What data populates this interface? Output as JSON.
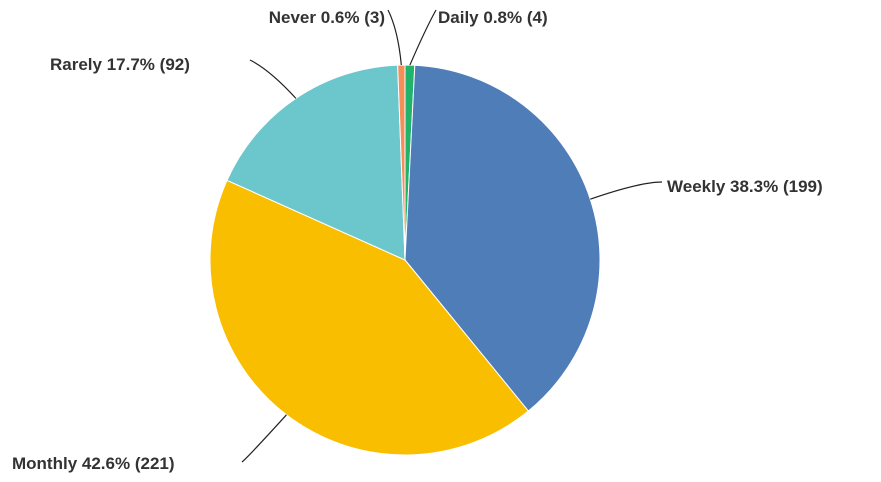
{
  "chart_data": {
    "type": "pie",
    "categories": [
      "Daily",
      "Weekly",
      "Monthly",
      "Rarely",
      "Never"
    ],
    "values": [
      0.8,
      38.3,
      42.6,
      17.7,
      0.6
    ],
    "value_labels": [
      "0.8%",
      "38.3%",
      "42.6%",
      "17.7%",
      "0.6%"
    ],
    "counts": [
      4,
      199,
      221,
      92,
      3
    ],
    "count_labels": [
      "(4)",
      "(199)",
      "(221)",
      "(92)",
      "(3)"
    ],
    "colors": [
      "#1fb36b",
      "#4f7db8",
      "#f9be00",
      "#6cc7cc",
      "#f58f5a"
    ]
  }
}
